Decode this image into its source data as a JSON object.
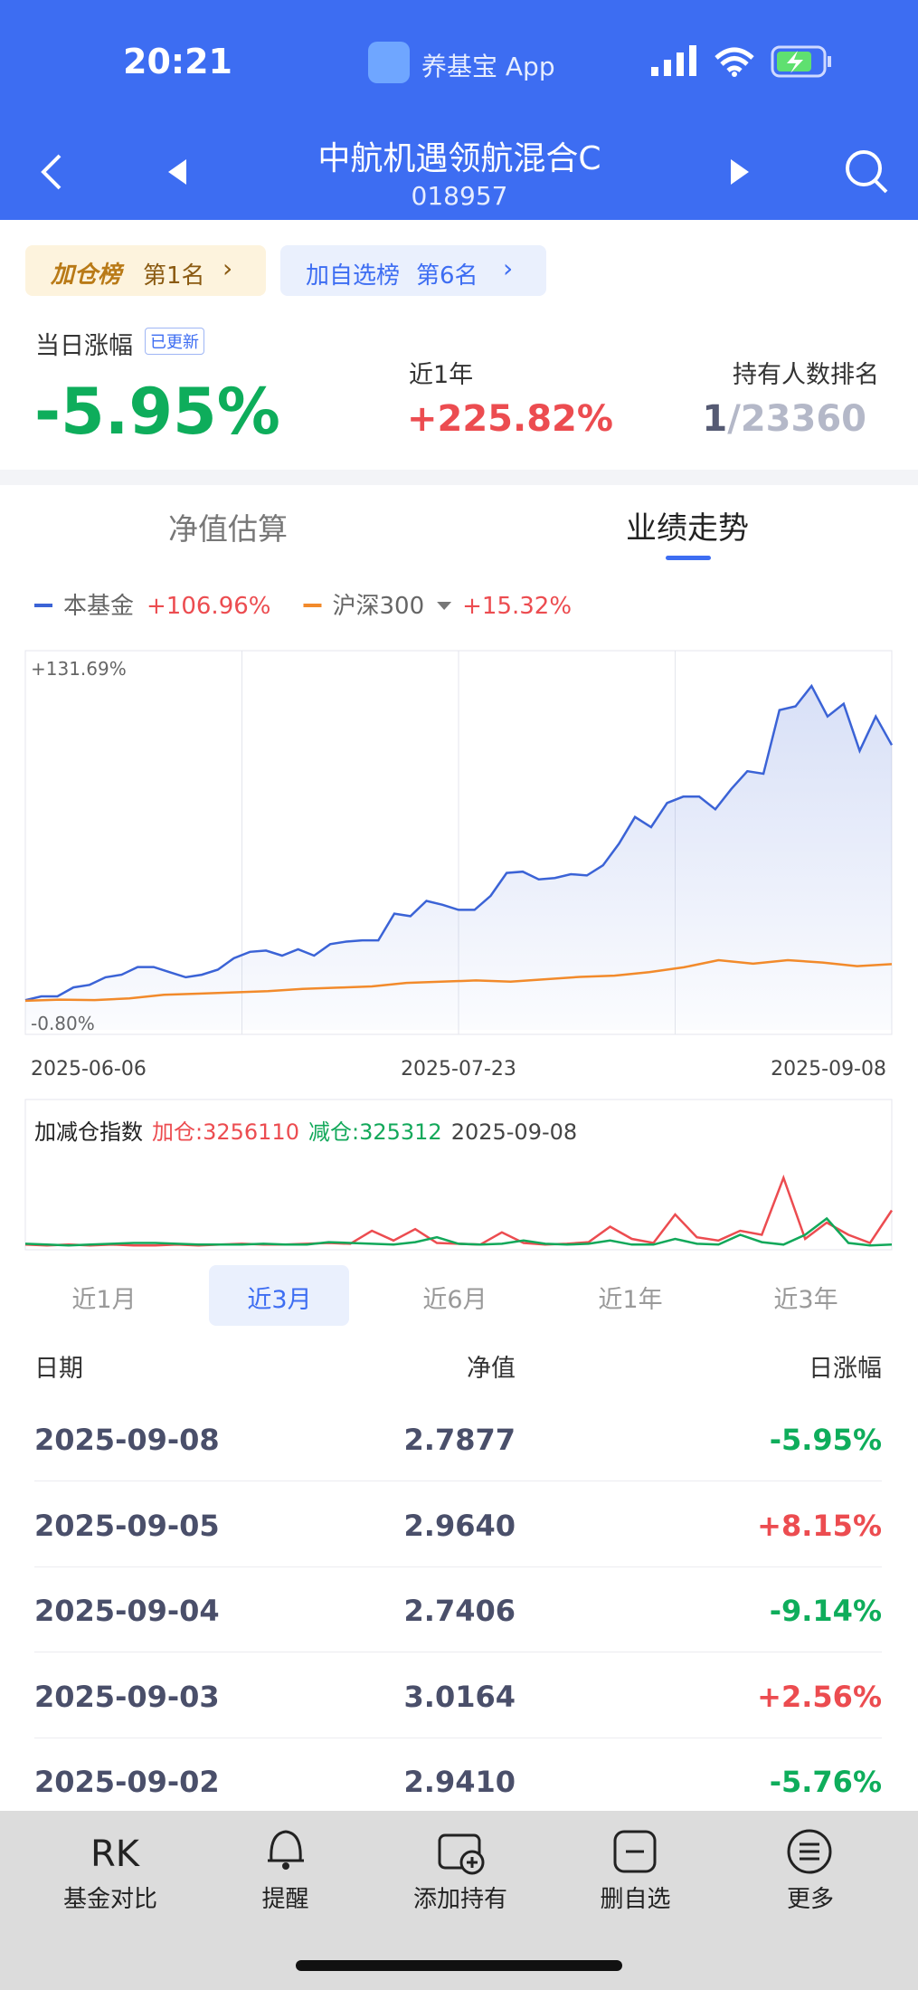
{
  "status": {
    "time": "20:21",
    "app": "养基宝 App"
  },
  "header": {
    "title": "中航机遇领航混合C",
    "code": "018957"
  },
  "badges": [
    {
      "label": "加仓榜",
      "rank": "第1名"
    },
    {
      "label": "加自选榜",
      "rank": "第6名"
    }
  ],
  "stats": {
    "daily_label": "当日涨幅",
    "updated": "已更新",
    "daily_value": "-5.95%",
    "year_label": "近1年",
    "year_value": "+225.82%",
    "rank_label": "持有人数排名",
    "rank_value": "1",
    "rank_total": "/23360"
  },
  "tabs": [
    "净值估算",
    "业绩走势"
  ],
  "chart_data": [
    {
      "type": "line",
      "series": [
        {
          "name": "本基金",
          "value_label": "+106.96%",
          "color": "#3b63d6",
          "values": [
            0.26,
            1.86,
            1.86,
            5.59,
            6.65,
            9.84,
            10.91,
            14.1,
            14.1,
            11.97,
            9.84,
            10.91,
            13.03,
            17.82,
            20.48,
            21.02,
            18.89,
            21.55,
            18.89,
            23.68,
            24.74,
            25.27,
            25.27,
            36.45,
            35.38,
            41.77,
            40.17,
            38.04,
            38.04,
            43.9,
            53.47,
            54.0,
            50.81,
            51.35,
            52.94,
            52.41,
            56.67,
            65.71,
            76.89,
            72.63,
            82.74,
            85.4,
            85.4,
            80.08,
            88.6,
            96.04,
            94.98,
            121.58,
            123.18,
            131.69,
            118.92,
            124.24,
            104.55,
            118.92,
            106.96
          ]
        },
        {
          "name": "沪深300",
          "value_label": "+15.32%",
          "color": "#f28a2b",
          "values": [
            0,
            0.5,
            0.3,
            1,
            2.5,
            3,
            3.5,
            4,
            5,
            5.5,
            6,
            7.5,
            8,
            8.5,
            8,
            9,
            10,
            10.5,
            12,
            14,
            17,
            15.5,
            17,
            16,
            14.5,
            15.32
          ]
        }
      ],
      "ylim": [
        -0.8,
        131.69
      ],
      "yticks": [
        {
          "value": 131.69,
          "label": "+131.69%"
        },
        {
          "value": -0.8,
          "label": "-0.80%"
        }
      ],
      "x_labels": [
        "2025-06-06",
        "2025-07-23",
        "2025-09-08"
      ]
    },
    {
      "type": "line",
      "title": "加减仓指数",
      "add_label": "加仓:3256110",
      "reduce_label": "减仓:325312",
      "date": "2025-09-08",
      "series": [
        {
          "color": "#ec4c50",
          "values": [
            3,
            2,
            3,
            2,
            3,
            2,
            2,
            3,
            2,
            3,
            4,
            3,
            3,
            4,
            5,
            4,
            20,
            8,
            22,
            5,
            4,
            3,
            18,
            5,
            3,
            4,
            6,
            25,
            10,
            5,
            40,
            12,
            8,
            20,
            15,
            85,
            10,
            30,
            15,
            5,
            45
          ]
        },
        {
          "color": "#12a85a",
          "values": [
            4,
            3,
            2,
            3,
            4,
            5,
            5,
            4,
            3,
            3,
            3,
            4,
            3,
            3,
            6,
            5,
            4,
            3,
            6,
            12,
            4,
            3,
            4,
            8,
            4,
            3,
            4,
            8,
            3,
            3,
            10,
            4,
            3,
            15,
            6,
            3,
            15,
            35,
            5,
            2,
            3
          ]
        }
      ],
      "ylim": [
        0,
        100
      ]
    }
  ],
  "periods": {
    "items": [
      "近1月",
      "近3月",
      "近6月",
      "近1年",
      "近3年"
    ],
    "selected": 1
  },
  "table": {
    "columns": [
      "日期",
      "净值",
      "日涨幅"
    ],
    "rows": [
      [
        "2025-09-08",
        "2.7877",
        "-5.95%"
      ],
      [
        "2025-09-05",
        "2.9640",
        "+8.15%"
      ],
      [
        "2025-09-04",
        "2.7406",
        "-9.14%"
      ],
      [
        "2025-09-03",
        "3.0164",
        "+2.56%"
      ],
      [
        "2025-09-02",
        "2.9410",
        "-5.76%"
      ]
    ]
  },
  "toolbar": [
    "基金对比",
    "提醒",
    "添加持有",
    "删自选",
    "更多"
  ]
}
